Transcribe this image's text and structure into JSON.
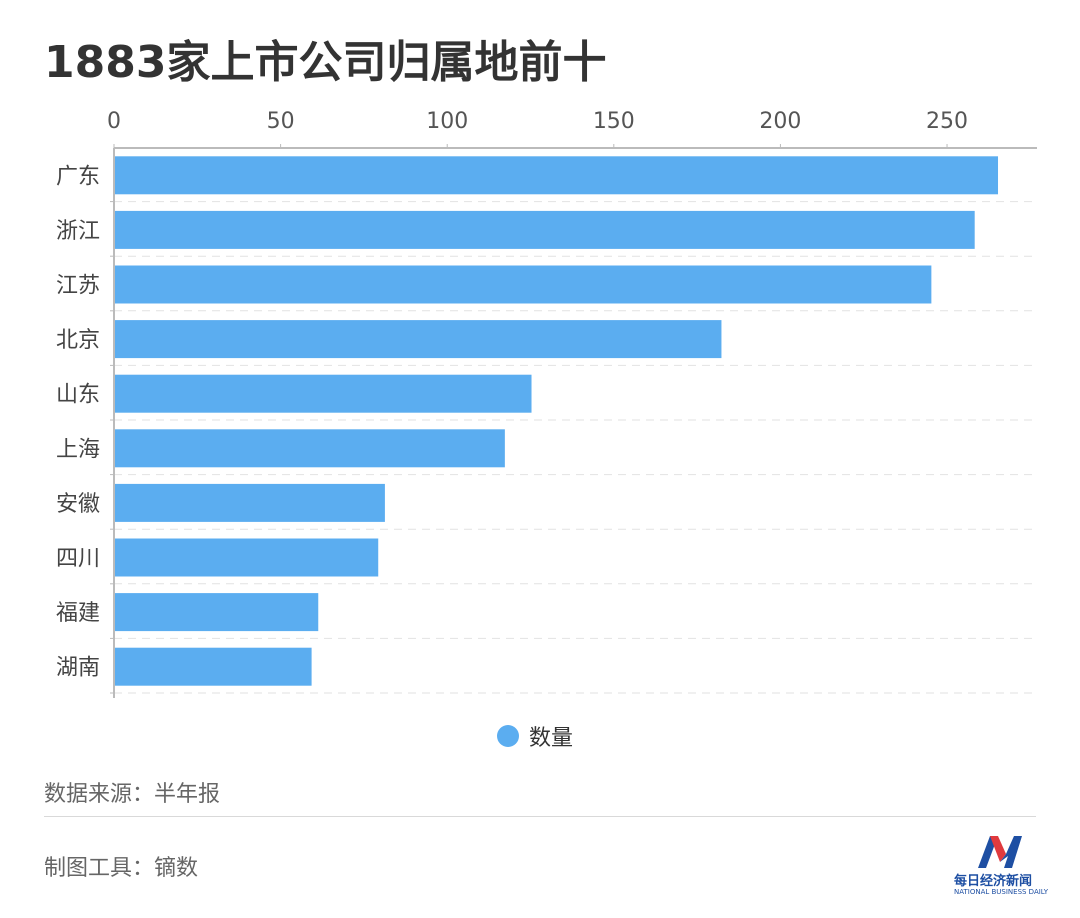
{
  "title": "1883家上市公司归属地前十",
  "chart_data": {
    "type": "bar",
    "orientation": "horizontal",
    "categories": [
      "广东",
      "浙江",
      "江苏",
      "北京",
      "山东",
      "上海",
      "安徽",
      "四川",
      "福建",
      "湖南"
    ],
    "series": [
      {
        "name": "数量",
        "values": [
          265,
          258,
          245,
          182,
          125,
          117,
          81,
          79,
          61,
          59
        ],
        "color": "#5badf0"
      }
    ],
    "xlim": [
      0,
      277
    ],
    "x_ticks": [
      0,
      50,
      100,
      150,
      200,
      250
    ],
    "x_tick_labels": [
      "0",
      "50",
      "100",
      "150",
      "200",
      "250"
    ],
    "x_axis_position": "top",
    "grid": "horizontal-dashed",
    "legend_position": "bottom-center"
  },
  "legend": {
    "label": "数量",
    "color": "#5badf0"
  },
  "footer": {
    "source": "数据来源：半年报",
    "tool": "制图工具：镝数"
  },
  "logo": {
    "name": "每日经济新闻",
    "subtitle": "NATIONAL BUSINESS DAILY"
  }
}
